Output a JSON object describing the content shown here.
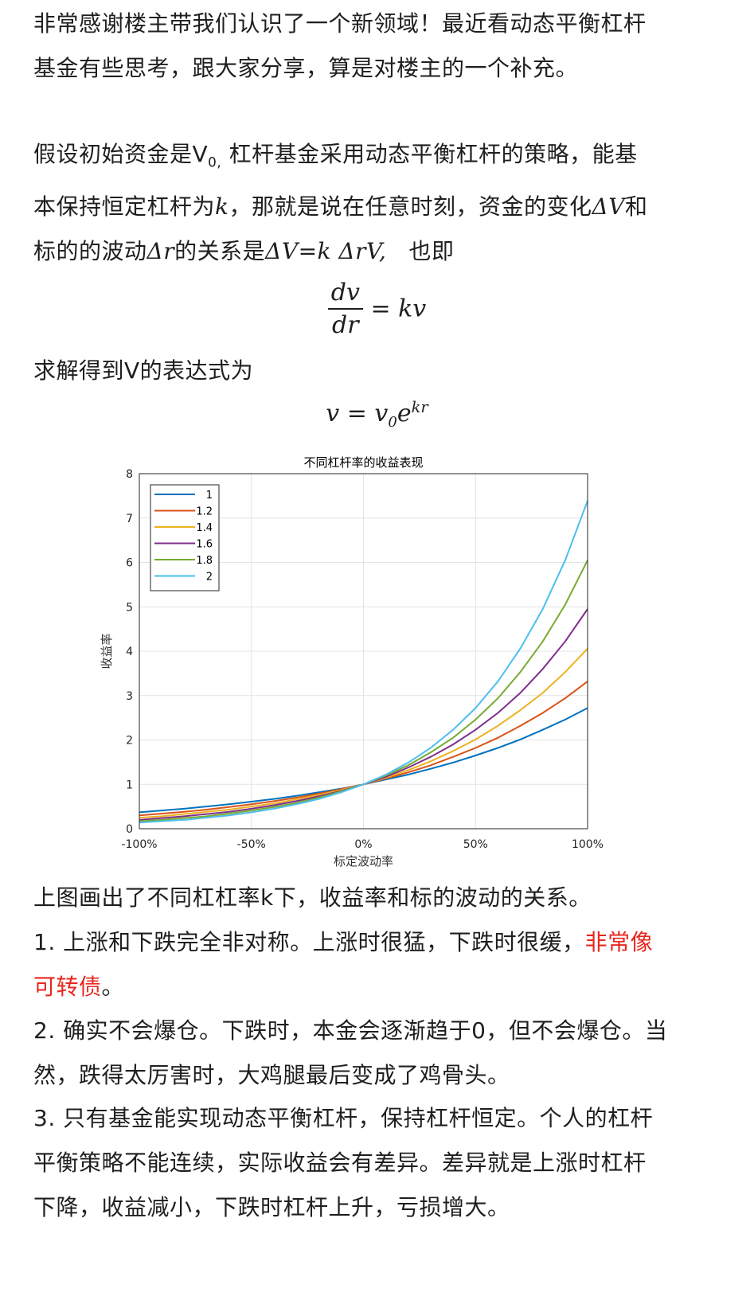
{
  "intro": {
    "line1": "非常感谢楼主带我们认识了一个新领域！最近看动态平衡杠杆",
    "line2": "基金有些思考，跟大家分享，算是对楼主的一个补充。"
  },
  "assume": {
    "part1": "假设初始资金是V",
    "sub0": "0,",
    "part2": " 杠杆基金采用动态平衡杠杆的策略，能基",
    "line2a": "本保持恒定杠杆为",
    "k": "k",
    "line2b": "，那就是说在任意时刻，资金的变化",
    "dV": "ΔV",
    "line2c": "和",
    "line3a": "标的的波动",
    "dr": "Δr",
    "line3b": "的关系是",
    "rel": "ΔV=k ΔrV,",
    "line3c": "   也即"
  },
  "eq1": {
    "num": "dv",
    "den": "dr",
    "rhs": "= kv"
  },
  "solve_text": "求解得到V的表达式为",
  "eq2": {
    "lhs": "v = v",
    "sub": "0",
    "e": "e",
    "exp": "kr"
  },
  "chart_data": {
    "type": "line",
    "title": "不同杠杆率的收益表现",
    "xlabel": "标定波动率",
    "ylabel": "收益率",
    "xlim": [
      -1,
      1
    ],
    "ylim": [
      0,
      8
    ],
    "x_ticks": [
      "-100%",
      "-50%",
      "0%",
      "50%",
      "100%"
    ],
    "y_ticks": [
      "0",
      "1",
      "2",
      "3",
      "4",
      "5",
      "6",
      "7",
      "8"
    ],
    "grid": true,
    "legend_position": "top-left",
    "x": [
      -1.0,
      -0.9,
      -0.8,
      -0.7,
      -0.6,
      -0.5,
      -0.4,
      -0.3,
      -0.2,
      -0.1,
      0.0,
      0.1,
      0.2,
      0.3,
      0.4,
      0.5,
      0.6,
      0.7,
      0.8,
      0.9,
      1.0
    ],
    "series": [
      {
        "name": "1",
        "color": "#0072BD",
        "values": [
          0.37,
          0.41,
          0.45,
          0.5,
          0.55,
          0.61,
          0.67,
          0.74,
          0.82,
          0.9,
          1.0,
          1.11,
          1.22,
          1.35,
          1.49,
          1.65,
          1.82,
          2.01,
          2.23,
          2.46,
          2.72
        ]
      },
      {
        "name": "1.2",
        "color": "#D95319",
        "values": [
          0.3,
          0.34,
          0.38,
          0.43,
          0.49,
          0.55,
          0.62,
          0.7,
          0.79,
          0.89,
          1.0,
          1.13,
          1.27,
          1.43,
          1.62,
          1.82,
          2.05,
          2.32,
          2.61,
          2.94,
          3.32
        ]
      },
      {
        "name": "1.4",
        "color": "#EDB120",
        "values": [
          0.25,
          0.28,
          0.33,
          0.38,
          0.43,
          0.5,
          0.57,
          0.66,
          0.76,
          0.87,
          1.0,
          1.15,
          1.32,
          1.52,
          1.75,
          2.01,
          2.32,
          2.67,
          3.06,
          3.53,
          4.06
        ]
      },
      {
        "name": "1.6",
        "color": "#7E2F8E",
        "values": [
          0.2,
          0.24,
          0.28,
          0.33,
          0.38,
          0.45,
          0.53,
          0.62,
          0.73,
          0.85,
          1.0,
          1.17,
          1.38,
          1.62,
          1.9,
          2.23,
          2.61,
          3.06,
          3.6,
          4.22,
          4.95
        ]
      },
      {
        "name": "1.8",
        "color": "#77AC30",
        "values": [
          0.17,
          0.2,
          0.24,
          0.28,
          0.34,
          0.41,
          0.49,
          0.58,
          0.7,
          0.84,
          1.0,
          1.2,
          1.43,
          1.72,
          2.05,
          2.46,
          2.94,
          3.53,
          4.22,
          5.05,
          6.05
        ]
      },
      {
        "name": "2",
        "color": "#4DBEEE",
        "values": [
          0.14,
          0.17,
          0.2,
          0.25,
          0.3,
          0.37,
          0.45,
          0.55,
          0.67,
          0.82,
          1.0,
          1.22,
          1.49,
          1.82,
          2.23,
          2.72,
          3.32,
          4.06,
          4.95,
          6.05,
          7.39
        ]
      }
    ]
  },
  "after_chart": "上图画出了不同杠杠率k下，收益率和标的波动的关系。",
  "point1": {
    "text": "1.  上涨和下跌完全非对称。上涨时很猛，下跌时很缓，",
    "red1": "非常像",
    "red2": "可转债",
    "end": "。"
  },
  "point2": {
    "line1": "2. 确实不会爆仓。下跌时，本金会逐渐趋于0，但不会爆仓。当",
    "line2": "然，跌得太厉害时，大鸡腿最后变成了鸡骨头。"
  },
  "point3": {
    "line1": "3.  只有基金能实现动态平衡杠杆，保持杠杆恒定。个人的杠杆",
    "line2": "平衡策略不能连续，实际收益会有差异。差异就是上涨时杠杆",
    "line3": "下降，收益减小，下跌时杠杆上升，亏损增大。"
  }
}
